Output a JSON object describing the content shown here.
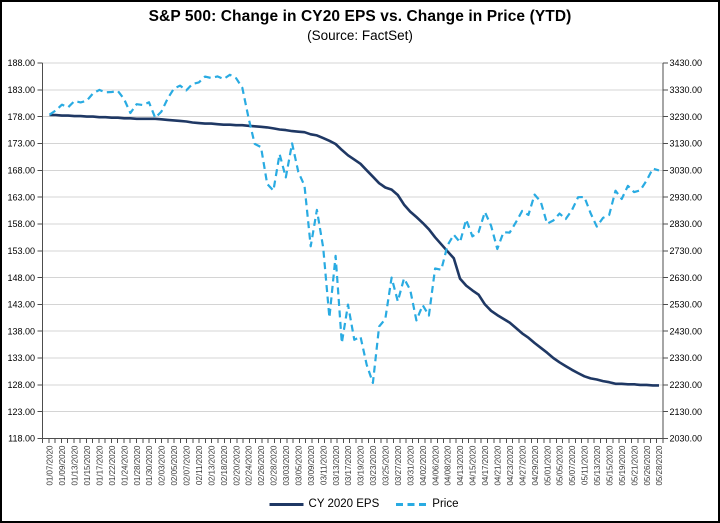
{
  "title": "S&P 500: Change in CY20 EPS vs. Change in Price (YTD)",
  "subtitle": "(Source: FactSet)",
  "legend": {
    "eps_label": "CY 2020 EPS",
    "price_label": "Price"
  },
  "colors": {
    "eps_line": "#1f3864",
    "price_line": "#29abe2",
    "gridline": "#d4d4d4",
    "axis": "#4d4d4d",
    "y_label_text": "#000000",
    "x_label_text": "#3a3a3a",
    "border": "#000000",
    "background": "#ffffff"
  },
  "chart_data": {
    "type": "line",
    "title": "S&P 500: Change in CY20 EPS vs. Change in Price (YTD)",
    "subtitle": "(Source: FactSet)",
    "grid": "horizontal",
    "legend_position": "bottom",
    "y_left": {
      "min": 118,
      "max": 188,
      "step": 5,
      "tick_labels": [
        "188.00",
        "183.00",
        "178.00",
        "173.00",
        "168.00",
        "163.00",
        "158.00",
        "153.00",
        "148.00",
        "143.00",
        "138.00",
        "133.00",
        "128.00",
        "123.00",
        "118.00"
      ]
    },
    "y_right": {
      "min": 2030,
      "max": 3430,
      "step": 100,
      "tick_labels": [
        "3430.00",
        "3330.00",
        "3230.00",
        "3130.00",
        "3030.00",
        "2930.00",
        "2830.00",
        "2730.00",
        "2630.00",
        "2530.00",
        "2430.00",
        "2330.00",
        "2230.00",
        "2130.00",
        "2030.00"
      ]
    },
    "x_tick_labels": [
      "01/07/2020",
      "01/09/2020",
      "01/13/2020",
      "01/15/2020",
      "01/17/2020",
      "01/22/2020",
      "01/24/2020",
      "01/28/2020",
      "01/30/2020",
      "02/03/2020",
      "02/05/2020",
      "02/07/2020",
      "02/11/2020",
      "02/13/2020",
      "02/18/2020",
      "02/20/2020",
      "02/24/2020",
      "02/26/2020",
      "02/28/2020",
      "03/03/2020",
      "03/05/2020",
      "03/09/2020",
      "03/11/2020",
      "03/13/2020",
      "03/17/2020",
      "03/19/2020",
      "03/23/2020",
      "03/25/2020",
      "03/27/2020",
      "03/31/2020",
      "04/02/2020",
      "04/06/2020",
      "04/08/2020",
      "04/13/2020",
      "04/15/2020",
      "04/17/2020",
      "04/21/2020",
      "04/23/2020",
      "04/27/2020",
      "04/29/2020",
      "05/01/2020",
      "05/05/2020",
      "05/07/2020",
      "05/11/2020",
      "05/13/2020",
      "05/15/2020",
      "05/19/2020",
      "05/21/2020",
      "05/26/2020",
      "05/28/2020"
    ],
    "dates": [
      "01/07/2020",
      "01/08/2020",
      "01/09/2020",
      "01/10/2020",
      "01/13/2020",
      "01/14/2020",
      "01/15/2020",
      "01/16/2020",
      "01/17/2020",
      "01/21/2020",
      "01/22/2020",
      "01/23/2020",
      "01/24/2020",
      "01/27/2020",
      "01/28/2020",
      "01/29/2020",
      "01/30/2020",
      "01/31/2020",
      "02/03/2020",
      "02/04/2020",
      "02/05/2020",
      "02/06/2020",
      "02/07/2020",
      "02/10/2020",
      "02/11/2020",
      "02/12/2020",
      "02/13/2020",
      "02/14/2020",
      "02/18/2020",
      "02/19/2020",
      "02/20/2020",
      "02/21/2020",
      "02/24/2020",
      "02/25/2020",
      "02/26/2020",
      "02/27/2020",
      "02/28/2020",
      "03/02/2020",
      "03/03/2020",
      "03/04/2020",
      "03/05/2020",
      "03/06/2020",
      "03/09/2020",
      "03/10/2020",
      "03/11/2020",
      "03/12/2020",
      "03/13/2020",
      "03/16/2020",
      "03/17/2020",
      "03/18/2020",
      "03/19/2020",
      "03/20/2020",
      "03/23/2020",
      "03/24/2020",
      "03/25/2020",
      "03/26/2020",
      "03/27/2020",
      "03/30/2020",
      "03/31/2020",
      "04/01/2020",
      "04/02/2020",
      "04/03/2020",
      "04/06/2020",
      "04/07/2020",
      "04/08/2020",
      "04/09/2020",
      "04/13/2020",
      "04/14/2020",
      "04/15/2020",
      "04/16/2020",
      "04/17/2020",
      "04/20/2020",
      "04/21/2020",
      "04/22/2020",
      "04/23/2020",
      "04/24/2020",
      "04/27/2020",
      "04/28/2020",
      "04/29/2020",
      "04/30/2020",
      "05/01/2020",
      "05/04/2020",
      "05/05/2020",
      "05/06/2020",
      "05/07/2020",
      "05/08/2020",
      "05/11/2020",
      "05/12/2020",
      "05/13/2020",
      "05/14/2020",
      "05/15/2020",
      "05/18/2020",
      "05/19/2020",
      "05/20/2020",
      "05/21/2020",
      "05/22/2020",
      "05/26/2020",
      "05/27/2020",
      "05/28/2020"
    ],
    "series": [
      {
        "name": "CY 2020 EPS",
        "axis": "left",
        "style": "solid",
        "values": [
          178.3,
          178.3,
          178.2,
          178.2,
          178.1,
          178.1,
          178.0,
          178.0,
          177.9,
          177.9,
          177.8,
          177.8,
          177.7,
          177.7,
          177.6,
          177.6,
          177.6,
          177.6,
          177.5,
          177.4,
          177.3,
          177.2,
          177.1,
          176.9,
          176.8,
          176.7,
          176.7,
          176.6,
          176.5,
          176.5,
          176.4,
          176.4,
          176.3,
          176.2,
          176.1,
          176.0,
          175.8,
          175.6,
          175.5,
          175.3,
          175.2,
          175.1,
          174.7,
          174.5,
          174.0,
          173.5,
          172.9,
          171.8,
          170.8,
          170.0,
          169.2,
          168.0,
          166.8,
          165.6,
          164.8,
          164.4,
          163.4,
          161.6,
          160.3,
          159.3,
          158.2,
          157.0,
          155.5,
          154.2,
          152.9,
          151.6,
          147.8,
          146.5,
          145.6,
          144.8,
          143.0,
          141.8,
          141.0,
          140.3,
          139.6,
          138.6,
          137.6,
          136.8,
          135.8,
          134.9,
          134.0,
          133.0,
          132.2,
          131.5,
          130.8,
          130.2,
          129.6,
          129.2,
          129.0,
          128.7,
          128.5,
          128.2,
          128.2,
          128.1,
          128.1,
          128.0,
          128.0,
          127.9,
          127.9
        ]
      },
      {
        "name": "Price",
        "axis": "right",
        "style": "dashed",
        "values": [
          3237.18,
          3253.05,
          3274.7,
          3265.35,
          3288.13,
          3283.15,
          3289.29,
          3316.81,
          3329.62,
          3320.79,
          3321.75,
          3325.54,
          3295.47,
          3243.63,
          3276.24,
          3273.4,
          3283.66,
          3225.52,
          3248.92,
          3297.59,
          3334.69,
          3345.78,
          3327.71,
          3352.09,
          3357.75,
          3379.45,
          3373.94,
          3380.16,
          3370.29,
          3386.15,
          3373.23,
          3337.75,
          3225.89,
          3128.21,
          3116.39,
          2978.76,
          2954.22,
          3090.23,
          3003.37,
          3130.12,
          3023.94,
          2972.37,
          2746.56,
          2882.23,
          2741.38,
          2480.64,
          2711.02,
          2386.13,
          2529.19,
          2398.1,
          2409.39,
          2304.92,
          2237.4,
          2447.33,
          2475.56,
          2630.07,
          2541.47,
          2626.65,
          2584.59,
          2470.5,
          2526.9,
          2488.65,
          2663.68,
          2659.41,
          2749.98,
          2789.82,
          2761.63,
          2846.06,
          2783.36,
          2799.55,
          2874.56,
          2823.16,
          2736.56,
          2799.31,
          2797.8,
          2836.74,
          2878.48,
          2863.39,
          2939.51,
          2912.43,
          2830.71,
          2842.74,
          2868.44,
          2848.42,
          2881.19,
          2929.8,
          2930.32,
          2870.12,
          2820.0,
          2852.5,
          2863.7,
          2953.91,
          2922.94,
          2971.61,
          2948.51,
          2955.45,
          2991.77,
          3036.13,
          3029.73
        ]
      }
    ]
  }
}
